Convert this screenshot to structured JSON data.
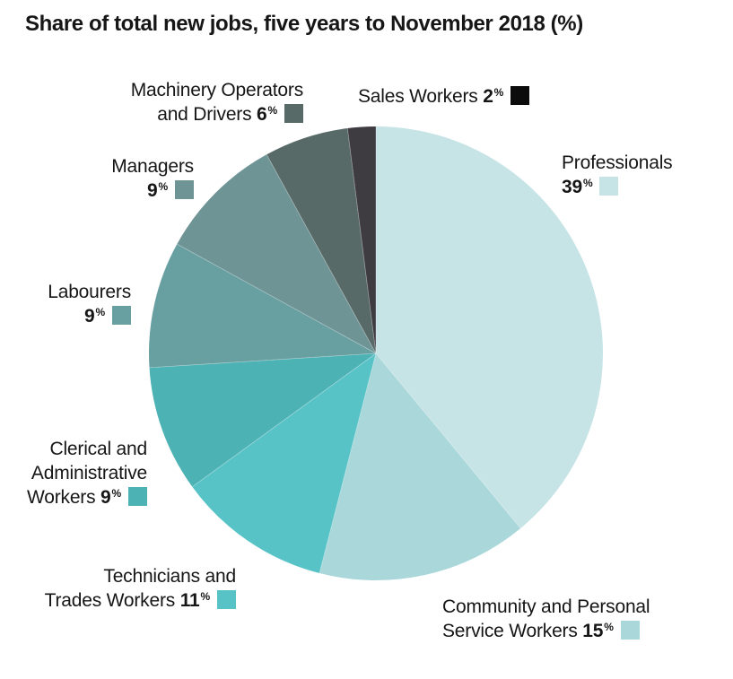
{
  "chart_data": {
    "type": "pie",
    "title": "Share of total new jobs, five years to November 2018 (%)",
    "percent_symbol": "%",
    "legend_position": "around-pie",
    "slices": [
      {
        "name": "Professionals",
        "value": 39,
        "value_text": "39",
        "color": "#c6e3e6",
        "label_lines": [
          "Professionals"
        ],
        "last_line_text": ""
      },
      {
        "name": "Community and Personal Service Workers",
        "value": 15,
        "value_text": "15",
        "color": "#a9d7da",
        "label_lines": [
          "Community and Personal"
        ],
        "last_line_text": "Service Workers "
      },
      {
        "name": "Technicians and Trades Workers",
        "value": 11,
        "value_text": "11",
        "color": "#58c3c7",
        "label_lines": [
          "Technicians and"
        ],
        "last_line_text": "Trades Workers "
      },
      {
        "name": "Clerical and Administrative Workers",
        "value": 9,
        "value_text": "9",
        "color": "#4db2b4",
        "label_lines": [
          "Clerical and",
          "Administrative"
        ],
        "last_line_text": "Workers "
      },
      {
        "name": "Labourers",
        "value": 9,
        "value_text": "9",
        "color": "#689fa1",
        "label_lines": [
          "Labourers"
        ],
        "last_line_text": ""
      },
      {
        "name": "Managers",
        "value": 9,
        "value_text": "9",
        "color": "#6f9496",
        "label_lines": [
          "Managers"
        ],
        "last_line_text": ""
      },
      {
        "name": "Machinery Operators and Drivers",
        "value": 6,
        "value_text": "6",
        "color": "#586a68",
        "label_lines": [
          "Machinery Operators"
        ],
        "last_line_text": "and Drivers "
      },
      {
        "name": "Sales Workers",
        "value": 2,
        "value_text": "2",
        "color": "#3e3b41",
        "swatch_color": "#0c0c0c",
        "label_lines": [],
        "last_line_text": "Sales Workers "
      }
    ]
  }
}
